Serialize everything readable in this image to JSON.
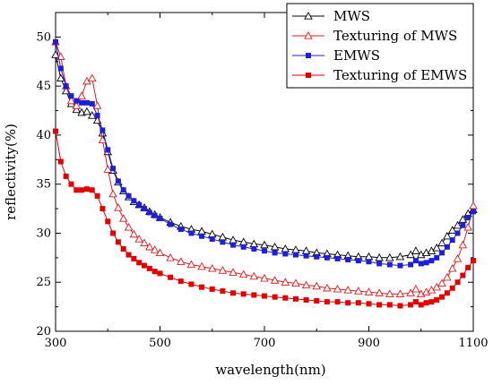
{
  "chart_data": {
    "type": "line",
    "xlabel": "wavelength(nm)",
    "ylabel": "reflectivity(%)",
    "xlim": [
      300,
      1100
    ],
    "ylim": [
      20,
      52.5
    ],
    "x_ticks": [
      300,
      500,
      700,
      900,
      1100
    ],
    "y_ticks": [
      20,
      25,
      30,
      35,
      40,
      45,
      50
    ],
    "grid": false,
    "legend_position": "top-right",
    "x": [
      300,
      400,
      500,
      600,
      700,
      800,
      900,
      950,
      1000,
      1050,
      1100
    ],
    "series": [
      {
        "name": "MWS",
        "color": "#000000",
        "marker": "open-triangle",
        "x": [
          300,
          310,
          320,
          330,
          340,
          350,
          360,
          370,
          380,
          390,
          400,
          410,
          420,
          430,
          440,
          450,
          460,
          470,
          480,
          490,
          500,
          520,
          540,
          560,
          580,
          600,
          620,
          640,
          660,
          680,
          700,
          720,
          740,
          760,
          780,
          800,
          820,
          840,
          860,
          880,
          900,
          920,
          940,
          960,
          980,
          990,
          1000,
          1010,
          1020,
          1030,
          1040,
          1050,
          1060,
          1070,
          1080,
          1090,
          1100
        ],
        "values": [
          48.2,
          45.8,
          44.5,
          43.2,
          42.6,
          42.3,
          42.4,
          42.0,
          41.5,
          40.2,
          38.3,
          36.4,
          35.2,
          34.3,
          33.7,
          33.2,
          32.9,
          32.6,
          32.2,
          31.9,
          31.6,
          31.1,
          30.7,
          30.4,
          30.2,
          29.9,
          29.6,
          29.3,
          29.1,
          28.9,
          28.8,
          28.6,
          28.4,
          28.3,
          28.2,
          28.0,
          27.9,
          27.8,
          27.7,
          27.6,
          27.6,
          27.5,
          27.5,
          27.6,
          27.8,
          28.2,
          27.8,
          28.0,
          28.2,
          28.5,
          29.0,
          29.7,
          30.3,
          30.8,
          31.4,
          32.0,
          32.4
        ]
      },
      {
        "name": "Texturing of MWS",
        "color": "#e31a1c",
        "marker": "open-triangle",
        "x": [
          300,
          310,
          320,
          330,
          340,
          350,
          360,
          370,
          380,
          390,
          400,
          410,
          420,
          430,
          440,
          450,
          460,
          470,
          480,
          490,
          500,
          520,
          540,
          560,
          580,
          600,
          620,
          640,
          660,
          680,
          700,
          720,
          740,
          760,
          780,
          800,
          820,
          840,
          860,
          880,
          900,
          920,
          940,
          960,
          980,
          990,
          1000,
          1010,
          1020,
          1030,
          1040,
          1050,
          1060,
          1070,
          1080,
          1090,
          1100
        ],
        "values": [
          49.5,
          48.0,
          45.0,
          43.5,
          43.0,
          44.0,
          45.5,
          45.8,
          43.0,
          39.5,
          36.5,
          34.0,
          32.6,
          31.5,
          30.6,
          29.9,
          29.4,
          29.0,
          28.6,
          28.3,
          28.0,
          27.5,
          27.1,
          26.8,
          26.6,
          26.4,
          26.2,
          26.0,
          25.8,
          25.6,
          25.4,
          25.2,
          25.0,
          24.9,
          24.7,
          24.6,
          24.4,
          24.3,
          24.2,
          24.1,
          24.0,
          23.9,
          23.8,
          23.8,
          23.9,
          24.3,
          23.8,
          24.0,
          24.2,
          24.5,
          24.9,
          25.5,
          26.4,
          27.4,
          28.8,
          30.6,
          32.8
        ]
      },
      {
        "name": "EMWS",
        "color": "#1f1fd6",
        "marker": "filled-square",
        "x": [
          300,
          310,
          320,
          330,
          340,
          350,
          360,
          370,
          380,
          390,
          400,
          410,
          420,
          430,
          440,
          450,
          460,
          470,
          480,
          490,
          500,
          520,
          540,
          560,
          580,
          600,
          620,
          640,
          660,
          680,
          700,
          720,
          740,
          760,
          780,
          800,
          820,
          840,
          860,
          880,
          900,
          920,
          940,
          960,
          980,
          990,
          1000,
          1010,
          1020,
          1030,
          1040,
          1050,
          1060,
          1070,
          1080,
          1090,
          1100
        ],
        "values": [
          49.5,
          46.8,
          45.0,
          44.0,
          43.5,
          43.3,
          43.3,
          43.2,
          42.0,
          40.5,
          38.5,
          36.6,
          35.3,
          34.4,
          33.8,
          33.3,
          32.9,
          32.5,
          32.1,
          31.8,
          31.5,
          30.9,
          30.4,
          30.0,
          29.7,
          29.4,
          29.1,
          28.8,
          28.6,
          28.4,
          28.2,
          28.0,
          27.9,
          27.8,
          27.7,
          27.6,
          27.5,
          27.4,
          27.3,
          27.2,
          27.1,
          26.9,
          26.8,
          26.7,
          26.8,
          27.2,
          26.9,
          27.0,
          27.2,
          27.5,
          28.0,
          28.6,
          29.3,
          30.0,
          30.8,
          31.6,
          32.2
        ]
      },
      {
        "name": "Texturing of EMWS",
        "color": "#e30000",
        "marker": "filled-square",
        "x": [
          300,
          310,
          320,
          330,
          340,
          350,
          360,
          370,
          380,
          390,
          400,
          410,
          420,
          430,
          440,
          450,
          460,
          470,
          480,
          490,
          500,
          520,
          540,
          560,
          580,
          600,
          620,
          640,
          660,
          680,
          700,
          720,
          740,
          760,
          780,
          800,
          820,
          840,
          860,
          880,
          900,
          920,
          940,
          960,
          980,
          990,
          1000,
          1010,
          1020,
          1030,
          1040,
          1050,
          1060,
          1070,
          1080,
          1090,
          1100
        ],
        "values": [
          40.4,
          37.3,
          35.8,
          35.0,
          34.4,
          34.4,
          34.5,
          34.4,
          33.8,
          32.5,
          31.2,
          30.0,
          29.1,
          28.4,
          27.8,
          27.4,
          27.0,
          26.7,
          26.4,
          26.1,
          25.9,
          25.5,
          25.1,
          24.8,
          24.5,
          24.3,
          24.1,
          23.9,
          23.8,
          23.7,
          23.6,
          23.5,
          23.4,
          23.3,
          23.2,
          23.1,
          23.0,
          23.0,
          22.9,
          22.9,
          22.8,
          22.7,
          22.7,
          22.6,
          22.7,
          23.0,
          22.7,
          22.9,
          23.0,
          23.2,
          23.5,
          23.9,
          24.4,
          25.0,
          25.7,
          26.5,
          27.2
        ]
      }
    ]
  }
}
